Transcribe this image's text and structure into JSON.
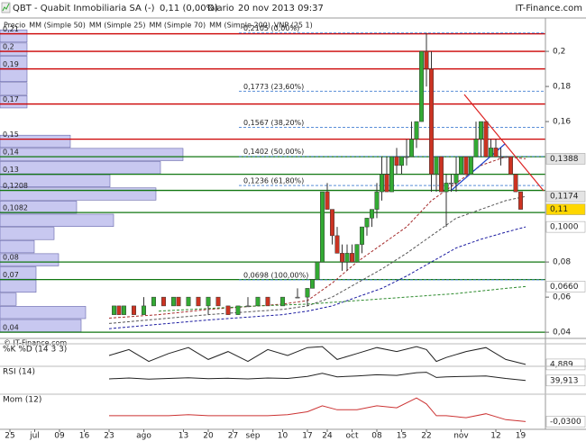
{
  "header": {
    "symbol": "QBT - Quabit Inmobiliaria SA (-)",
    "price": "0,11 (0,00%)",
    "period": "Diario",
    "datetime": "20 nov 2013 09:37",
    "brand": "IT-Finance.com"
  },
  "watermark": "© IT-Finance.com",
  "chart_data": {
    "type": "candlestick",
    "xlim": [
      -2,
      108
    ],
    "ylim": [
      0.037,
      0.219
    ],
    "xticks": [
      {
        "value": 0,
        "label": "25"
      },
      {
        "value": 5,
        "label": "jul"
      },
      {
        "value": 10,
        "label": "09"
      },
      {
        "value": 15,
        "label": "16"
      },
      {
        "value": 20,
        "label": "23"
      },
      {
        "value": 27,
        "label": "ago"
      },
      {
        "value": 35,
        "label": "13"
      },
      {
        "value": 40,
        "label": "20"
      },
      {
        "value": 45,
        "label": "27"
      },
      {
        "value": 49,
        "label": "sep"
      },
      {
        "value": 55,
        "label": "10"
      },
      {
        "value": 60,
        "label": "17"
      },
      {
        "value": 64,
        "label": "24"
      },
      {
        "value": 69,
        "label": "oct"
      },
      {
        "value": 74,
        "label": "08"
      },
      {
        "value": 79,
        "label": "15"
      },
      {
        "value": 84,
        "label": "22"
      },
      {
        "value": 91,
        "label": "nov"
      },
      {
        "value": 98,
        "label": "12"
      },
      {
        "value": 103,
        "label": "19"
      }
    ],
    "yticks": [
      {
        "value": 0.2,
        "label": "0,2"
      },
      {
        "value": 0.18,
        "label": "0,18"
      },
      {
        "value": 0.16,
        "label": "0,16"
      },
      {
        "value": 0.08,
        "label": "0,08"
      },
      {
        "value": 0.06,
        "label": "0,06"
      },
      {
        "value": 0.04,
        "label": "0,04"
      }
    ],
    "candles": {
      "name": "Precio",
      "legend_color": "#555555",
      "up_color": "#33aa33",
      "down_color": "#cc3322",
      "flat_color": "#888888",
      "x": [
        21,
        22,
        23,
        25,
        27,
        29,
        31,
        33,
        34,
        36,
        38,
        40,
        42,
        44,
        46,
        48,
        50,
        52,
        55,
        58,
        60,
        61,
        62,
        63,
        64,
        65,
        66,
        67,
        68,
        69,
        70,
        71,
        72,
        73,
        74,
        75,
        76,
        77,
        78,
        79,
        80,
        81,
        82,
        83,
        84,
        85,
        86,
        87,
        88,
        89,
        90,
        91,
        92,
        93,
        94,
        95,
        96,
        97,
        98,
        99,
        100,
        101,
        102,
        103
      ],
      "open": [
        0.05,
        0.055,
        0.05,
        0.055,
        0.05,
        0.055,
        0.06,
        0.055,
        0.06,
        0.055,
        0.06,
        0.055,
        0.06,
        0.055,
        0.05,
        0.055,
        0.055,
        0.06,
        0.055,
        0.06,
        0.06,
        0.065,
        0.07,
        0.08,
        0.12,
        0.11,
        0.095,
        0.085,
        0.08,
        0.085,
        0.08,
        0.09,
        0.1,
        0.105,
        0.11,
        0.12,
        0.13,
        0.12,
        0.14,
        0.135,
        0.14,
        0.14,
        0.15,
        0.16,
        0.2,
        0.19,
        0.13,
        0.14,
        0.12,
        0.125,
        0.125,
        0.13,
        0.14,
        0.13,
        0.14,
        0.15,
        0.16,
        0.14,
        0.145,
        0.14,
        0.14,
        0.14,
        0.13,
        0.12
      ],
      "high": [
        0.055,
        0.055,
        0.055,
        0.055,
        0.06,
        0.06,
        0.06,
        0.06,
        0.06,
        0.06,
        0.06,
        0.06,
        0.06,
        0.055,
        0.055,
        0.06,
        0.06,
        0.06,
        0.06,
        0.065,
        0.065,
        0.07,
        0.08,
        0.12,
        0.125,
        0.11,
        0.1,
        0.09,
        0.09,
        0.09,
        0.09,
        0.1,
        0.105,
        0.11,
        0.125,
        0.14,
        0.14,
        0.14,
        0.145,
        0.14,
        0.15,
        0.16,
        0.16,
        0.2,
        0.2105,
        0.2,
        0.14,
        0.14,
        0.13,
        0.13,
        0.14,
        0.14,
        0.14,
        0.14,
        0.16,
        0.16,
        0.16,
        0.15,
        0.15,
        0.145,
        0.14,
        0.14,
        0.13,
        0.12
      ],
      "low": [
        0.05,
        0.05,
        0.05,
        0.05,
        0.05,
        0.055,
        0.055,
        0.055,
        0.055,
        0.055,
        0.055,
        0.05,
        0.055,
        0.05,
        0.05,
        0.055,
        0.055,
        0.055,
        0.055,
        0.06,
        0.055,
        0.065,
        0.07,
        0.08,
        0.11,
        0.09,
        0.085,
        0.075,
        0.075,
        0.08,
        0.08,
        0.085,
        0.095,
        0.1,
        0.105,
        0.115,
        0.12,
        0.12,
        0.13,
        0.13,
        0.135,
        0.14,
        0.145,
        0.16,
        0.18,
        0.12,
        0.12,
        0.12,
        0.1,
        0.12,
        0.12,
        0.13,
        0.13,
        0.13,
        0.14,
        0.14,
        0.14,
        0.14,
        0.14,
        0.135,
        0.14,
        0.13,
        0.12,
        0.11
      ],
      "close": [
        0.055,
        0.05,
        0.055,
        0.05,
        0.055,
        0.06,
        0.055,
        0.06,
        0.055,
        0.06,
        0.055,
        0.06,
        0.055,
        0.05,
        0.055,
        0.055,
        0.06,
        0.055,
        0.06,
        0.06,
        0.065,
        0.07,
        0.08,
        0.12,
        0.11,
        0.095,
        0.085,
        0.08,
        0.085,
        0.08,
        0.09,
        0.1,
        0.105,
        0.11,
        0.12,
        0.13,
        0.12,
        0.14,
        0.135,
        0.14,
        0.14,
        0.15,
        0.16,
        0.2,
        0.19,
        0.13,
        0.14,
        0.12,
        0.125,
        0.125,
        0.13,
        0.14,
        0.13,
        0.14,
        0.15,
        0.16,
        0.14,
        0.145,
        0.14,
        0.14,
        0.14,
        0.13,
        0.12,
        0.11
      ]
    },
    "series": [
      {
        "name": "MM (Simple 50)",
        "color": "#555555",
        "x": [
          20,
          40,
          55,
          60,
          65,
          70,
          75,
          80,
          85,
          90,
          95,
          100,
          104
        ],
        "values": [
          0.045,
          0.05,
          0.053,
          0.055,
          0.06,
          0.068,
          0.076,
          0.085,
          0.095,
          0.105,
          0.11,
          0.115,
          0.1174
        ]
      },
      {
        "name": "MM (Simple 25)",
        "color": "#a52a2a",
        "x": [
          20,
          30,
          40,
          50,
          55,
          60,
          65,
          70,
          75,
          80,
          85,
          90,
          95,
          100,
          104
        ],
        "values": [
          0.048,
          0.05,
          0.053,
          0.055,
          0.056,
          0.058,
          0.068,
          0.08,
          0.09,
          0.1,
          0.115,
          0.125,
          0.135,
          0.14,
          0.1388
        ]
      },
      {
        "name": "MM (Simple 70)",
        "color": "#1a1aa0",
        "x": [
          20,
          40,
          55,
          60,
          65,
          70,
          75,
          80,
          85,
          90,
          95,
          100,
          104
        ],
        "values": [
          0.042,
          0.047,
          0.05,
          0.052,
          0.055,
          0.06,
          0.065,
          0.072,
          0.08,
          0.088,
          0.093,
          0.097,
          0.1
        ]
      },
      {
        "name": "MM (Simple 200)",
        "color": "#2e8b2e",
        "x": [
          30,
          50,
          60,
          70,
          80,
          90,
          100,
          104
        ],
        "values": [
          0.052,
          0.055,
          0.056,
          0.058,
          0.06,
          0.062,
          0.065,
          0.066
        ]
      }
    ],
    "volume_profile": {
      "name": "VNP (25 1)",
      "color": "#c8c8f0",
      "legend_color": "#aaaabb",
      "bins": [
        0.04,
        0.0475,
        0.055,
        0.0625,
        0.07,
        0.0775,
        0.085,
        0.0925,
        0.1,
        0.1075,
        0.115,
        0.1225,
        0.13,
        0.1375,
        0.145,
        0.1525,
        0.16,
        0.1675,
        0.175,
        0.1825,
        0.19,
        0.1975,
        0.205,
        0.2125
      ],
      "volumes": [
        90,
        95,
        18,
        40,
        40,
        65,
        38,
        60,
        126,
        85,
        173,
        122,
        178,
        203,
        78,
        0,
        0,
        30,
        30,
        30,
        30,
        30,
        30
      ]
    },
    "levels": [
      {
        "value": 0.21,
        "label": "0,21",
        "color": "#cc0000"
      },
      {
        "value": 0.2,
        "label": "0,2",
        "color": "#cc0000"
      },
      {
        "value": 0.19,
        "label": "0,19",
        "color": "#cc0000"
      },
      {
        "value": 0.17,
        "label": "0,17",
        "color": "#cc0000"
      },
      {
        "value": 0.15,
        "label": "0,15",
        "color": "#cc0000"
      },
      {
        "value": 0.14,
        "label": "0,14",
        "color": "#117711"
      },
      {
        "value": 0.13,
        "label": "0,13",
        "color": "#117711"
      },
      {
        "value": 0.1208,
        "label": "0,1208",
        "color": "#117711"
      },
      {
        "value": 0.1082,
        "label": "0,1082",
        "color": "#117711"
      },
      {
        "value": 0.08,
        "label": "0,08",
        "color": "#117711"
      },
      {
        "value": 0.07,
        "label": "0,07",
        "color": "#117711"
      },
      {
        "value": 0.04,
        "label": "0,04",
        "color": "#117711"
      }
    ],
    "fibonacci": {
      "color": "#5a8fd8",
      "levels": [
        {
          "value": 0.2105,
          "label": "0,2105 (0,00%)"
        },
        {
          "value": 0.1773,
          "label": "0,1773 (23,60%)"
        },
        {
          "value": 0.1567,
          "label": "0,1567 (38,20%)"
        },
        {
          "value": 0.1402,
          "label": "0,1402 (50,00%)"
        },
        {
          "value": 0.1236,
          "label": "0,1236 (61,80%)"
        },
        {
          "value": 0.0698,
          "label": "0,0698 (100,00%)"
        }
      ]
    },
    "price_markers": [
      {
        "value": 0.1388,
        "label": "0,1388",
        "color": "#000000",
        "background": "#e4e4e4"
      },
      {
        "value": 0.1174,
        "label": "0,1174",
        "color": "#000000",
        "background": "#e4e4e4"
      },
      {
        "value": 0.11,
        "label": "0,11",
        "color": "#000000",
        "background": "#ffd700"
      },
      {
        "value": 0.1,
        "label": "0,1000",
        "color": "#1a1aa0",
        "background": "#ffffff"
      },
      {
        "value": 0.066,
        "label": "0,0660",
        "color": "#2e8b2e",
        "background": "#ffffff"
      }
    ],
    "indicators": [
      {
        "label": "%K %D (14 3 3)",
        "color": "#222222",
        "ylim": [
          0,
          100
        ],
        "x": [
          20,
          24,
          28,
          32,
          36,
          40,
          44,
          48,
          52,
          56,
          60,
          63,
          66,
          70,
          74,
          78,
          82,
          84,
          86,
          88,
          92,
          96,
          100,
          104
        ],
        "values": [
          50,
          80,
          20,
          60,
          90,
          30,
          70,
          20,
          80,
          50,
          90,
          95,
          30,
          60,
          90,
          70,
          95,
          80,
          20,
          40,
          70,
          90,
          30,
          4.889
        ],
        "marker": {
          "value": 4.889,
          "label": "4,889",
          "color": "#cc0000"
        }
      },
      {
        "label": "RSI (14)",
        "color": "#222222",
        "ylim": [
          0,
          100
        ],
        "x": [
          20,
          24,
          28,
          32,
          36,
          40,
          44,
          48,
          52,
          56,
          60,
          63,
          66,
          70,
          74,
          78,
          82,
          84,
          86,
          88,
          92,
          96,
          100,
          104
        ],
        "values": [
          48,
          52,
          47,
          50,
          53,
          49,
          51,
          48,
          52,
          50,
          60,
          75,
          58,
          62,
          68,
          65,
          78,
          80,
          55,
          58,
          60,
          62,
          50,
          39.913
        ],
        "marker": {
          "value": 39.913,
          "label": "39,913",
          "color": "#000000"
        }
      },
      {
        "label": "Mom (12)",
        "color": "#cc3333",
        "ylim": [
          -0.06,
          0.1
        ],
        "x": [
          20,
          24,
          28,
          32,
          36,
          40,
          44,
          48,
          52,
          56,
          60,
          63,
          66,
          70,
          74,
          78,
          82,
          84,
          86,
          88,
          92,
          96,
          100,
          104
        ],
        "values": [
          0,
          0,
          0,
          0,
          0.005,
          0,
          0,
          0,
          0,
          0.005,
          0.02,
          0.05,
          0.03,
          0.03,
          0.05,
          0.04,
          0.09,
          0.06,
          0,
          0,
          -0.01,
          0.01,
          -0.02,
          -0.03
        ],
        "marker": {
          "value": -0.03,
          "label": "-0,0300",
          "color": "#cc0000"
        }
      }
    ]
  }
}
